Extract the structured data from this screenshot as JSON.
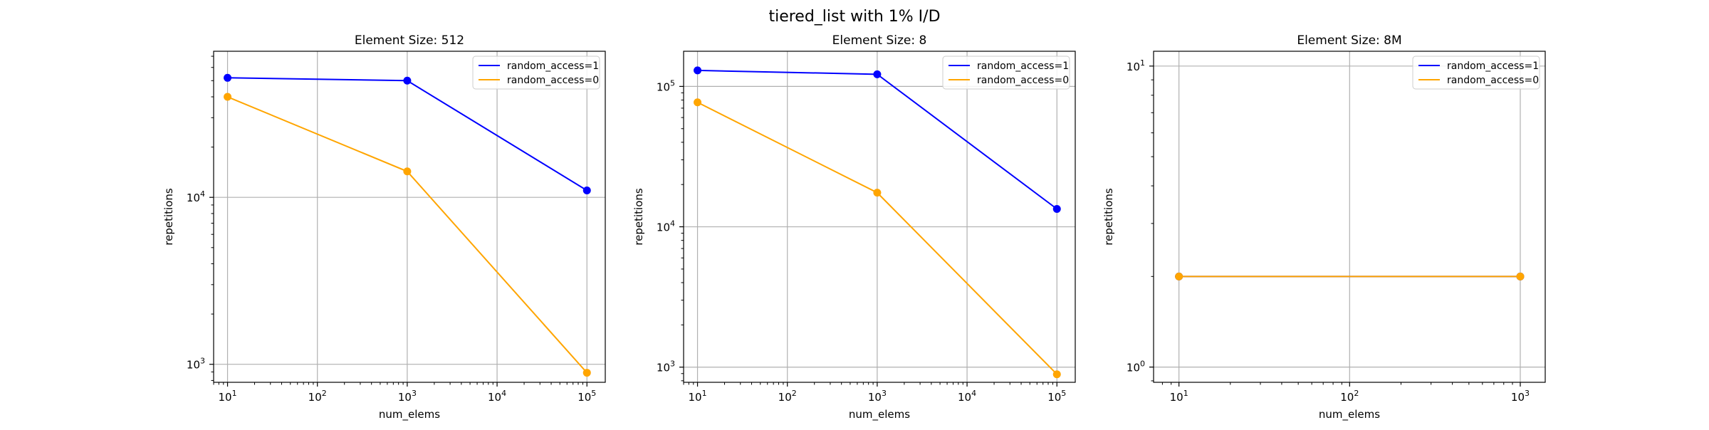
{
  "figure": {
    "suptitle": "tiered_list with 1% I/D"
  },
  "chart_data": [
    {
      "type": "line",
      "title": "Element Size: 512",
      "xlabel": "num_elems",
      "ylabel": "repetitions",
      "xscale": "log",
      "yscale": "log",
      "xlim": [
        7,
        160000
      ],
      "ylim": [
        780,
        75000
      ],
      "grid": true,
      "legend_position": "top-right",
      "xticks": [
        {
          "value": 10,
          "base": "10",
          "exp": "1"
        },
        {
          "value": 100,
          "base": "10",
          "exp": "2"
        },
        {
          "value": 1000,
          "base": "10",
          "exp": "3"
        },
        {
          "value": 10000,
          "base": "10",
          "exp": "4"
        },
        {
          "value": 100000,
          "base": "10",
          "exp": "5"
        }
      ],
      "yticks": [
        {
          "value": 1000,
          "base": "10",
          "exp": "3"
        },
        {
          "value": 10000,
          "base": "10",
          "exp": "4"
        }
      ],
      "series": [
        {
          "name": "random_access=1",
          "color": "#0000ff",
          "x": [
            10,
            1000,
            100000
          ],
          "y": [
            52000,
            50000,
            11000
          ]
        },
        {
          "name": "random_access=0",
          "color": "#ffa500",
          "x": [
            10,
            1000,
            100000
          ],
          "y": [
            40000,
            14300,
            890
          ]
        }
      ]
    },
    {
      "type": "line",
      "title": "Element Size: 8",
      "xlabel": "num_elems",
      "ylabel": "repetitions",
      "xscale": "log",
      "yscale": "log",
      "xlim": [
        7,
        160000
      ],
      "ylim": [
        780,
        178000
      ],
      "grid": true,
      "legend_position": "top-right",
      "xticks": [
        {
          "value": 10,
          "base": "10",
          "exp": "1"
        },
        {
          "value": 100,
          "base": "10",
          "exp": "2"
        },
        {
          "value": 1000,
          "base": "10",
          "exp": "3"
        },
        {
          "value": 10000,
          "base": "10",
          "exp": "4"
        },
        {
          "value": 100000,
          "base": "10",
          "exp": "5"
        }
      ],
      "yticks": [
        {
          "value": 1000,
          "base": "10",
          "exp": "3"
        },
        {
          "value": 10000,
          "base": "10",
          "exp": "4"
        },
        {
          "value": 100000,
          "base": "10",
          "exp": "5"
        }
      ],
      "series": [
        {
          "name": "random_access=1",
          "color": "#0000ff",
          "x": [
            10,
            1000,
            100000
          ],
          "y": [
            130000,
            122000,
            13400
          ]
        },
        {
          "name": "random_access=0",
          "color": "#ffa500",
          "x": [
            10,
            1000,
            100000
          ],
          "y": [
            77000,
            17500,
            890
          ]
        }
      ]
    },
    {
      "type": "line",
      "title": "Element Size: 8M",
      "xlabel": "num_elems",
      "ylabel": "repetitions",
      "xscale": "log",
      "yscale": "log",
      "xlim": [
        7.1,
        1400
      ],
      "ylim": [
        0.89,
        11.2
      ],
      "grid": true,
      "legend_position": "top-right",
      "xticks": [
        {
          "value": 10,
          "base": "10",
          "exp": "1"
        },
        {
          "value": 100,
          "base": "10",
          "exp": "2"
        },
        {
          "value": 1000,
          "base": "10",
          "exp": "3"
        }
      ],
      "yticks": [
        {
          "value": 1,
          "base": "10",
          "exp": "0"
        },
        {
          "value": 10,
          "base": "10",
          "exp": "1"
        }
      ],
      "series": [
        {
          "name": "random_access=1",
          "color": "#0000ff",
          "x": [
            10,
            1000
          ],
          "y": [
            2,
            2
          ]
        },
        {
          "name": "random_access=0",
          "color": "#ffa500",
          "x": [
            10,
            1000
          ],
          "y": [
            2,
            2
          ]
        }
      ]
    }
  ]
}
